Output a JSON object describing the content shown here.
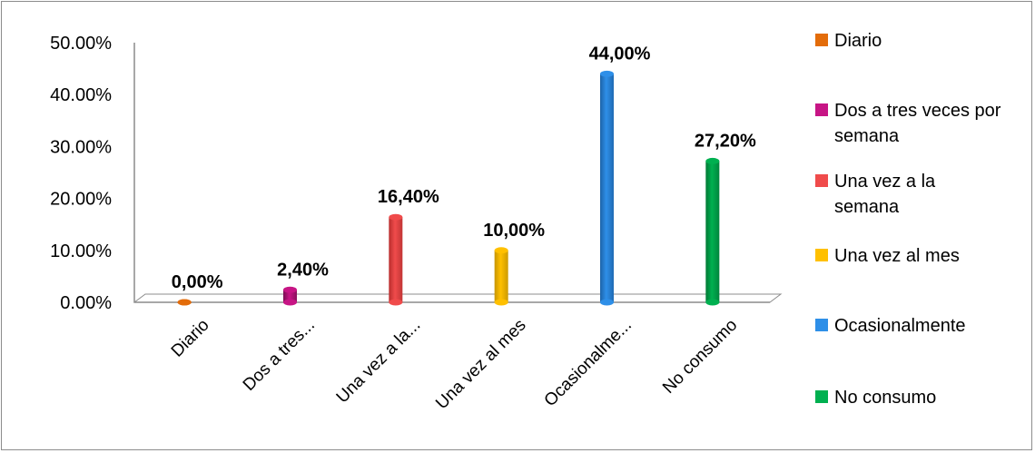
{
  "chart_data": {
    "type": "bar",
    "title": "",
    "xlabel": "",
    "ylabel": "",
    "ylim": [
      0,
      50
    ],
    "yticks": [
      "0.00%",
      "10.00%",
      "20.00%",
      "30.00%",
      "40.00%",
      "50.00%"
    ],
    "categories": [
      "Diario",
      "Dos a tres...",
      "Una vez a la...",
      "Una vez al mes",
      "Ocasionalme...",
      "No consumo"
    ],
    "values": [
      0.0,
      2.4,
      16.4,
      10.0,
      44.0,
      27.2
    ],
    "data_labels": [
      "0,00%",
      "2,40%",
      "16,40%",
      "10,00%",
      "44,00%",
      "27,20%"
    ],
    "colors": [
      "#E36C0A",
      "#C71585",
      "#F04B4B",
      "#FFC000",
      "#2E8FE8",
      "#00B050"
    ],
    "legend": {
      "position": "right",
      "entries": [
        [
          "Diario"
        ],
        [
          "Dos a tres veces por",
          "semana"
        ],
        [
          "Una vez a la",
          "semana"
        ],
        [
          "Una vez al mes"
        ],
        [
          "Ocasionalmente"
        ],
        [
          "No consumo"
        ]
      ]
    },
    "grid": false
  }
}
